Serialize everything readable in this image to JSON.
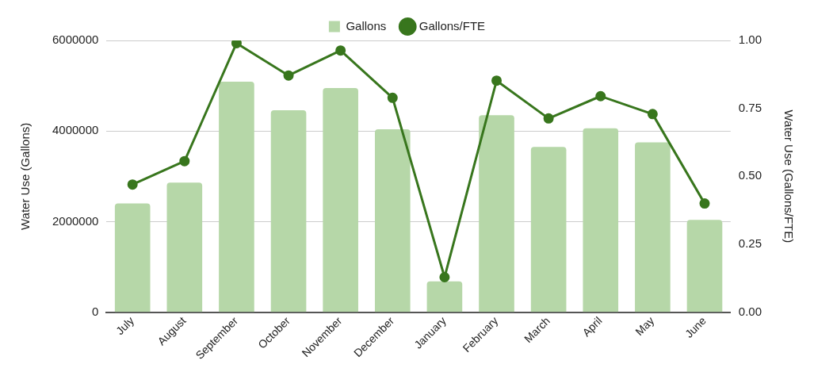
{
  "chart_data": {
    "type": "bar",
    "ylabel": "Water Use (Gallons)",
    "y2label": "Water Use (Gallons/FTE)",
    "categories": [
      "July",
      "August",
      "September",
      "October",
      "November",
      "December",
      "January",
      "February",
      "March",
      "April",
      "May",
      "June"
    ],
    "series": [
      {
        "name": "Gallons",
        "color": "#b6d7a8",
        "values": [
          2400000,
          2860000,
          5090000,
          4460000,
          4950000,
          4040000,
          680000,
          4350000,
          3650000,
          4060000,
          3750000,
          2040000
        ]
      },
      {
        "name": "Gallons/FTE",
        "type": "line",
        "axis": "y2",
        "color": "#38761d",
        "values": [
          0.47,
          0.556,
          0.99,
          0.871,
          0.963,
          0.789,
          0.129,
          0.852,
          0.713,
          0.795,
          0.729,
          0.4
        ]
      }
    ],
    "ylim": [
      0,
      6000000
    ],
    "yticks": [
      0,
      2000000,
      4000000,
      6000000
    ],
    "y2lim": [
      0,
      1
    ],
    "y2ticks": [
      {
        "value": 0,
        "label": "0.00"
      },
      {
        "value": 0.25,
        "label": "0.25"
      },
      {
        "value": 0.5,
        "label": "0.50"
      },
      {
        "value": 0.75,
        "label": "0.75"
      },
      {
        "value": 1,
        "label": "1.00"
      }
    ],
    "grid": "y",
    "legend": "top",
    "marker": "circle",
    "line_style": "solid"
  }
}
